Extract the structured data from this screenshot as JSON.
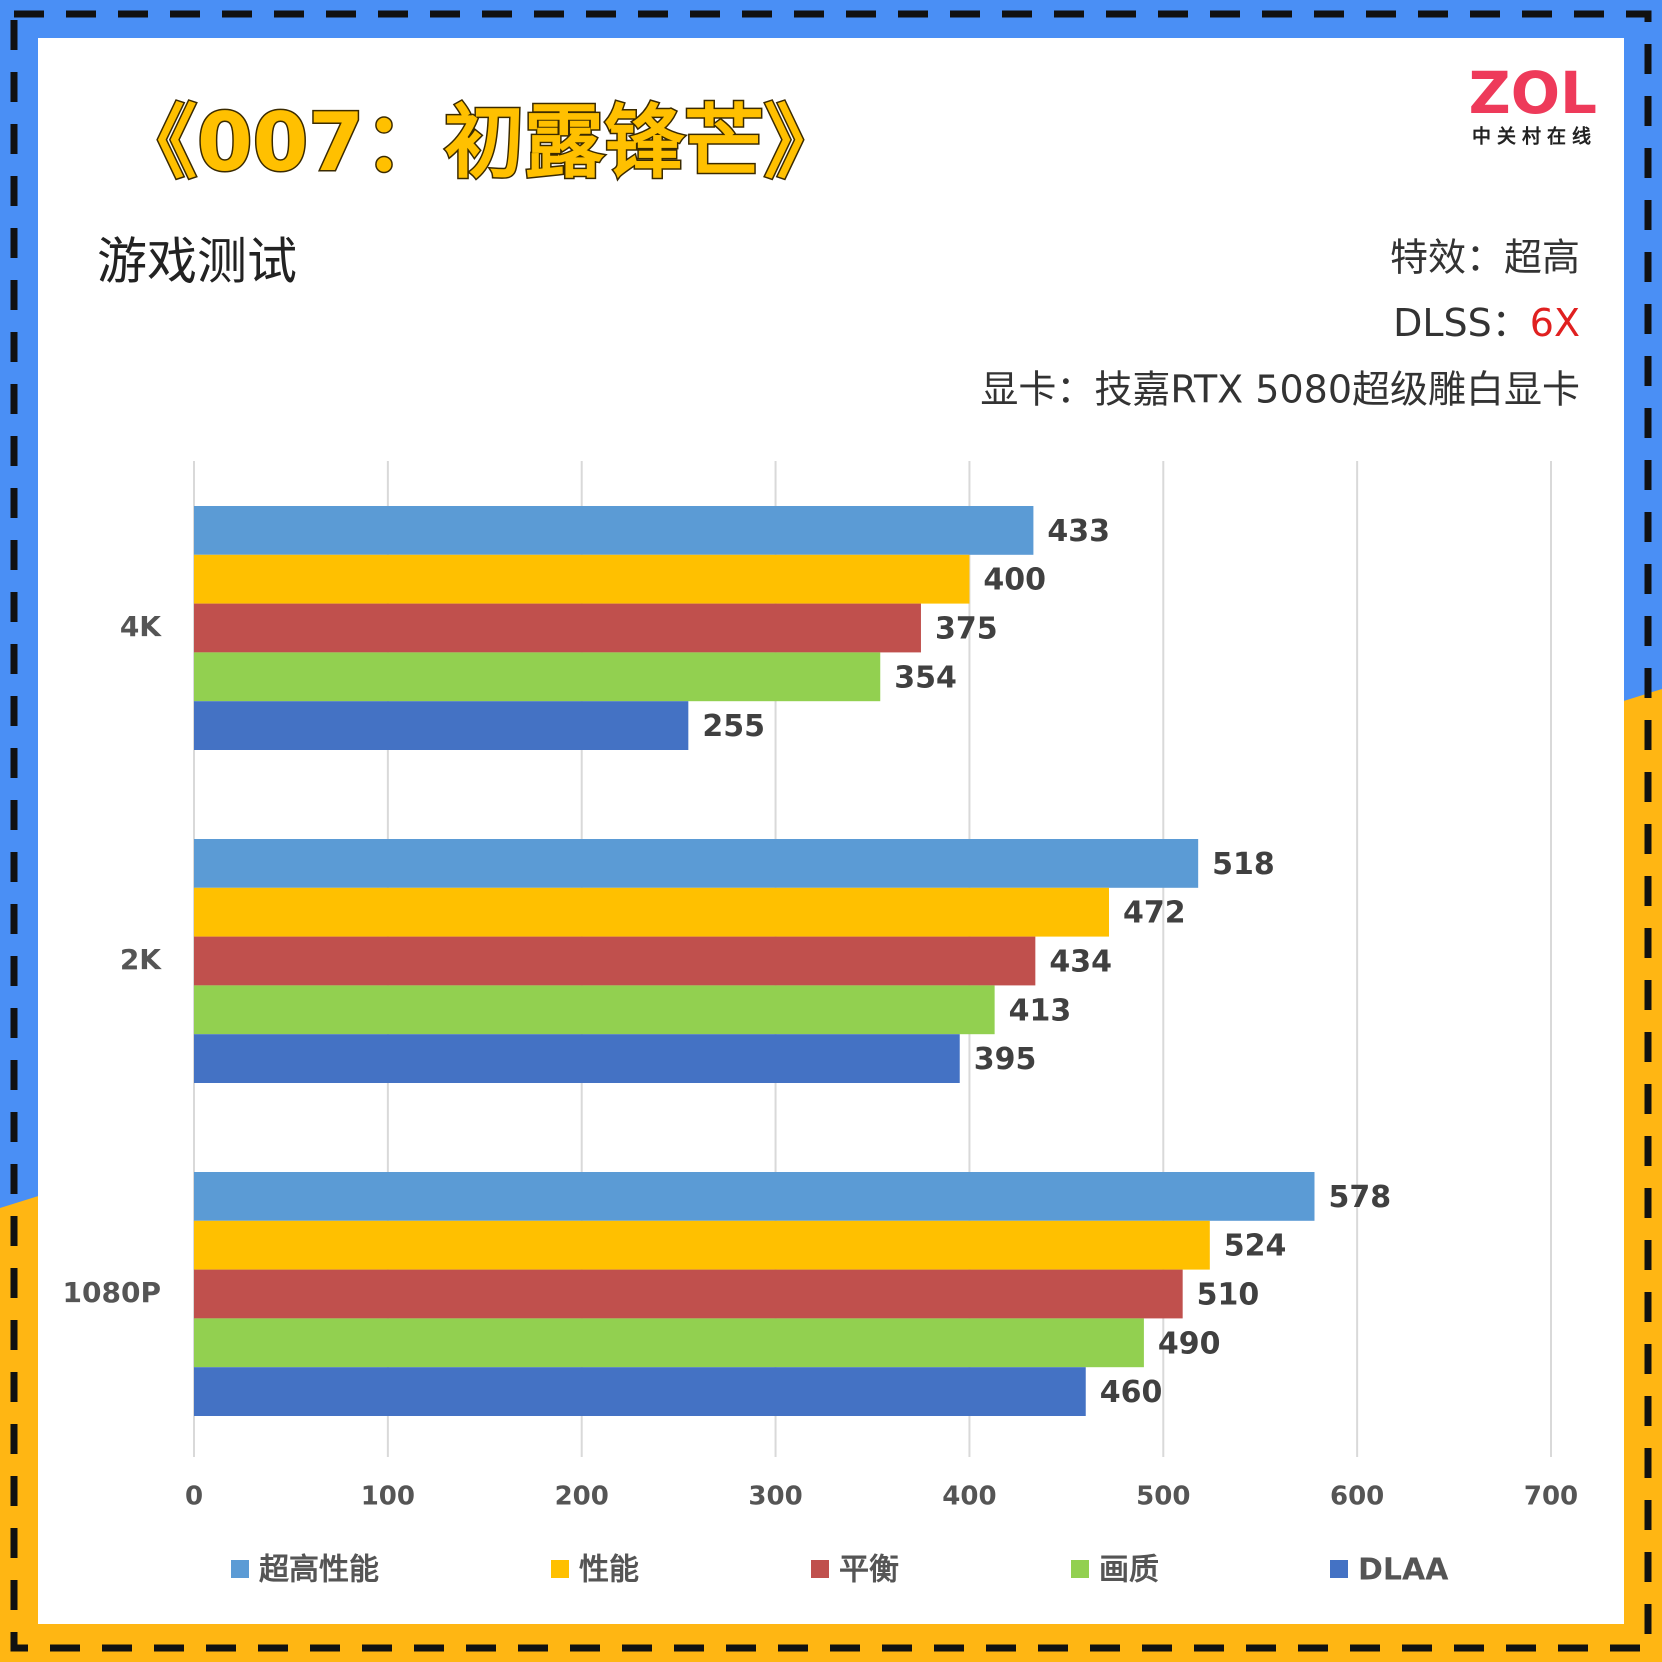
{
  "chart_data": {
    "type": "bar",
    "orientation": "horizontal",
    "title": "《007：初露锋芒》",
    "subtitle": "游戏测试",
    "annotations": [
      "特效：超高",
      "DLSS：",
      "6X",
      "显卡：技嘉RTX 5080超级雕白显卡"
    ],
    "logo": {
      "text": "ZOL",
      "caption": "中关村在线"
    },
    "categories": [
      "4K",
      "2K",
      "1080P"
    ],
    "series": [
      {
        "name": "超高性能",
        "color": "#5b9bd5",
        "values": [
          433,
          518,
          578
        ]
      },
      {
        "name": "性能",
        "color": "#ffc000",
        "values": [
          400,
          472,
          524
        ]
      },
      {
        "name": "平衡",
        "color": "#c0504d",
        "values": [
          375,
          434,
          510
        ]
      },
      {
        "name": "画质",
        "color": "#92d050",
        "values": [
          354,
          413,
          490
        ]
      },
      {
        "name": "DLAA",
        "color": "#4472c4",
        "values": [
          255,
          395,
          460
        ]
      }
    ],
    "xlim": [
      0,
      700
    ],
    "xticks": [
      0,
      100,
      200,
      300,
      400,
      500,
      600,
      700
    ],
    "grid": true,
    "legend": "bottom"
  }
}
